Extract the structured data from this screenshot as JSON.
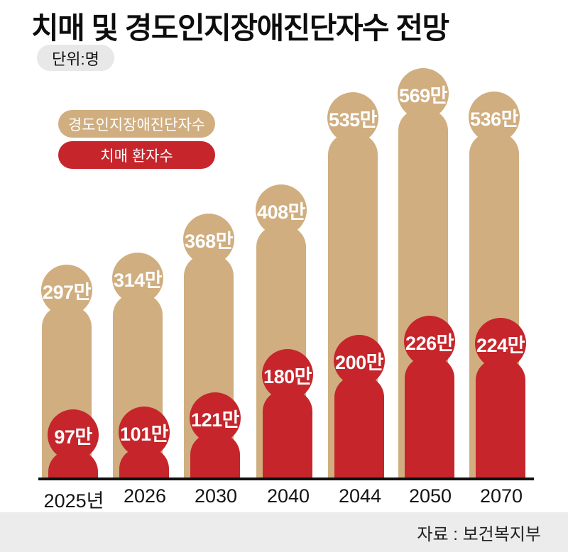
{
  "page": {
    "background": "#ffffff"
  },
  "header": {
    "title": "치매 및 경도인지장애진단자수 전망",
    "unit_label": "단위:명"
  },
  "legend": {
    "position": "top-left",
    "items": [
      {
        "label": "경도인지장애진단자수",
        "color": "#d0ae80"
      },
      {
        "label": "치매 환자수",
        "color": "#c5252b"
      }
    ]
  },
  "footer": {
    "source": "자료 : 보건복지부",
    "background": "#ececec"
  },
  "chart_data": {
    "type": "bar",
    "bar_style": "person-pictogram",
    "title": "치매 및 경도인지장애진단자수 전망",
    "unit_label": "단위:명",
    "value_unit": "만",
    "categories": [
      "2025년",
      "2026",
      "2030",
      "2040",
      "2044",
      "2050",
      "2070"
    ],
    "series": [
      {
        "name": "경도인지장애진단자수",
        "color": "#d0ae80",
        "values": [
          297,
          314,
          368,
          408,
          535,
          569,
          536
        ],
        "labels": [
          "297만",
          "314만",
          "368만",
          "408만",
          "535만",
          "569만",
          "536만"
        ]
      },
      {
        "name": "치매 환자수",
        "color": "#c5252b",
        "values": [
          97,
          101,
          121,
          180,
          200,
          226,
          224
        ],
        "labels": [
          "97만",
          "101만",
          "121만",
          "180만",
          "200만",
          "226만",
          "224만"
        ]
      }
    ],
    "ylim": [
      0,
      600
    ],
    "grid": false,
    "legend_position": "top-left",
    "source": "자료 : 보건복지부"
  }
}
